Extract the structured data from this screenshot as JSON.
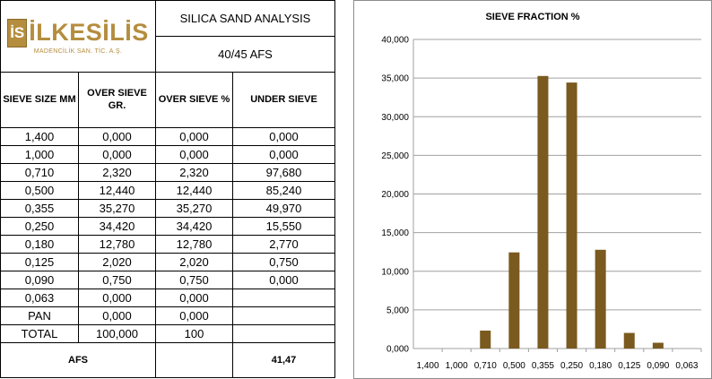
{
  "company": {
    "logo_letters": "İS",
    "name": "İLKESİLİS",
    "subtitle": "MADENCİLİK SAN. TİC. A.Ş."
  },
  "title": "SILICA SAND ANALYSIS",
  "grade": "40/45 AFS",
  "table": {
    "headers": [
      "SIEVE SIZE MM",
      "OVER SIEVE GR.",
      "OVER SIEVE %",
      "UNDER SIEVE"
    ],
    "rows": [
      [
        "1,400",
        "0,000",
        "0,000",
        "0,000"
      ],
      [
        "1,000",
        "0,000",
        "0,000",
        "0,000"
      ],
      [
        "0,710",
        "2,320",
        "2,320",
        "97,680"
      ],
      [
        "0,500",
        "12,440",
        "12,440",
        "85,240"
      ],
      [
        "0,355",
        "35,270",
        "35,270",
        "49,970"
      ],
      [
        "0,250",
        "34,420",
        "34,420",
        "15,550"
      ],
      [
        "0,180",
        "12,780",
        "12,780",
        "2,770"
      ],
      [
        "0,125",
        "2,020",
        "2,020",
        "0,750"
      ],
      [
        "0,090",
        "0,750",
        "0,750",
        "0,000"
      ],
      [
        "0,063",
        "0,000",
        "0,000",
        ""
      ],
      [
        "PAN",
        "0,000",
        "0,000",
        ""
      ],
      [
        "TOTAL",
        "100,000",
        "100",
        ""
      ]
    ],
    "afs_label": "AFS",
    "afs_value": "41,47"
  },
  "colors": {
    "bar": "#7a5a1e",
    "logo": "#b58d3e",
    "grid": "#a0a0a0"
  },
  "chart_data": {
    "type": "bar",
    "title": "SIEVE FRACTION %",
    "categories": [
      "1,400",
      "1,000",
      "0,710",
      "0,500",
      "0,355",
      "0,250",
      "0,180",
      "0,125",
      "0,090",
      "0,063"
    ],
    "values": [
      0,
      0,
      2.32,
      12.44,
      35.27,
      34.42,
      12.78,
      2.02,
      0.75,
      0
    ],
    "ylim": [
      0,
      40000
    ],
    "ytick_labels": [
      "0,000",
      "5,000",
      "10,000",
      "15,000",
      "20,000",
      "25,000",
      "30,000",
      "35,000",
      "40,000"
    ],
    "grid": true,
    "legend": "none"
  }
}
